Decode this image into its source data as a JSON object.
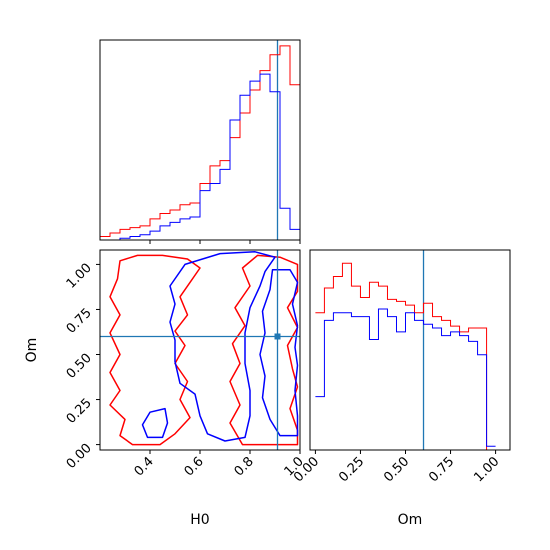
{
  "colors": {
    "red_series": "#ff0000",
    "blue_series": "#0000ff",
    "truth_line": "#1f77b4"
  },
  "chart_data": [
    {
      "type": "histogram",
      "panel": "H0 marginal",
      "xlim": [
        0.2,
        1.0
      ],
      "bin_edges": [
        0.2,
        0.24,
        0.28,
        0.32,
        0.36,
        0.4,
        0.44,
        0.48,
        0.52,
        0.56,
        0.6,
        0.64,
        0.68,
        0.72,
        0.76,
        0.8,
        0.84,
        0.88,
        0.92,
        0.96,
        1.0
      ],
      "series": [
        {
          "color": "red",
          "values": [
            2,
            4,
            6,
            7,
            8,
            12,
            15,
            17,
            20,
            21,
            32,
            42,
            45,
            58,
            72,
            85,
            96,
            105,
            110,
            88
          ]
        },
        {
          "color": "blue",
          "values": [
            0,
            0,
            1,
            2,
            3,
            5,
            8,
            10,
            12,
            13,
            28,
            32,
            40,
            68,
            82,
            90,
            94,
            84,
            18,
            6
          ]
        }
      ],
      "truth": 0.91
    },
    {
      "type": "contour",
      "panel": "H0 vs Om",
      "xlabel": "H0",
      "ylabel": "Om",
      "xlim": [
        0.2,
        1.0
      ],
      "ylim": [
        -0.03,
        1.08
      ],
      "xticks": [
        "0.4",
        "0.6",
        "0.8",
        "1.0"
      ],
      "yticks": [
        "0.00",
        "0.25",
        "0.50",
        "0.75",
        "1.00"
      ],
      "truth": {
        "H0": 0.91,
        "Om": 0.6
      },
      "series": [
        {
          "color": "red",
          "contours": [
            [
              [
                0.28,
                1.02
              ],
              [
                0.35,
                1.05
              ],
              [
                0.45,
                1.05
              ],
              [
                0.55,
                1.03
              ],
              [
                0.6,
                0.98
              ],
              [
                0.56,
                0.9
              ],
              [
                0.52,
                0.82
              ],
              [
                0.55,
                0.72
              ],
              [
                0.5,
                0.63
              ],
              [
                0.54,
                0.55
              ],
              [
                0.5,
                0.45
              ],
              [
                0.55,
                0.35
              ],
              [
                0.52,
                0.25
              ],
              [
                0.56,
                0.15
              ],
              [
                0.5,
                0.06
              ],
              [
                0.44,
                0.0
              ],
              [
                0.33,
                0.0
              ],
              [
                0.28,
                0.05
              ],
              [
                0.3,
                0.14
              ],
              [
                0.24,
                0.22
              ],
              [
                0.28,
                0.3
              ],
              [
                0.24,
                0.4
              ],
              [
                0.28,
                0.5
              ],
              [
                0.24,
                0.62
              ],
              [
                0.28,
                0.72
              ],
              [
                0.24,
                0.82
              ],
              [
                0.27,
                0.92
              ],
              [
                0.28,
                1.02
              ]
            ],
            [
              [
                0.83,
                1.05
              ],
              [
                0.92,
                1.04
              ],
              [
                0.99,
                1.0
              ],
              [
                0.99,
                0.85
              ],
              [
                0.95,
                0.76
              ],
              [
                0.99,
                0.65
              ],
              [
                0.95,
                0.55
              ],
              [
                0.97,
                0.42
              ],
              [
                0.99,
                0.32
              ],
              [
                0.96,
                0.2
              ],
              [
                0.99,
                0.08
              ],
              [
                0.99,
                0.0
              ],
              [
                0.77,
                0.0
              ],
              [
                0.72,
                0.12
              ],
              [
                0.76,
                0.22
              ],
              [
                0.72,
                0.35
              ],
              [
                0.76,
                0.45
              ],
              [
                0.73,
                0.56
              ],
              [
                0.78,
                0.66
              ],
              [
                0.74,
                0.76
              ],
              [
                0.8,
                0.88
              ],
              [
                0.77,
                0.98
              ],
              [
                0.83,
                1.05
              ]
            ]
          ]
        },
        {
          "color": "blue",
          "contours": [
            [
              [
                0.54,
                1.0
              ],
              [
                0.68,
                1.06
              ],
              [
                0.82,
                1.07
              ],
              [
                0.9,
                1.04
              ],
              [
                0.86,
                0.96
              ],
              [
                0.84,
                0.88
              ],
              [
                0.8,
                0.76
              ],
              [
                0.78,
                0.62
              ],
              [
                0.78,
                0.45
              ],
              [
                0.8,
                0.3
              ],
              [
                0.8,
                0.16
              ],
              [
                0.78,
                0.04
              ],
              [
                0.7,
                0.02
              ],
              [
                0.63,
                0.06
              ],
              [
                0.6,
                0.16
              ],
              [
                0.58,
                0.28
              ],
              [
                0.52,
                0.34
              ],
              [
                0.5,
                0.46
              ],
              [
                0.5,
                0.58
              ],
              [
                0.48,
                0.68
              ],
              [
                0.5,
                0.78
              ],
              [
                0.48,
                0.88
              ],
              [
                0.54,
                1.0
              ]
            ],
            [
              [
                0.89,
                0.97
              ],
              [
                0.96,
                0.97
              ],
              [
                0.99,
                0.9
              ],
              [
                0.97,
                0.78
              ],
              [
                0.99,
                0.66
              ],
              [
                0.98,
                0.54
              ],
              [
                0.99,
                0.44
              ],
              [
                0.98,
                0.3
              ],
              [
                0.99,
                0.16
              ],
              [
                0.99,
                0.05
              ],
              [
                0.92,
                0.05
              ],
              [
                0.88,
                0.14
              ],
              [
                0.85,
                0.26
              ],
              [
                0.86,
                0.38
              ],
              [
                0.84,
                0.5
              ],
              [
                0.86,
                0.62
              ],
              [
                0.85,
                0.74
              ],
              [
                0.88,
                0.86
              ],
              [
                0.89,
                0.97
              ]
            ],
            [
              [
                0.4,
                0.18
              ],
              [
                0.46,
                0.2
              ],
              [
                0.47,
                0.12
              ],
              [
                0.45,
                0.04
              ],
              [
                0.39,
                0.04
              ],
              [
                0.37,
                0.11
              ],
              [
                0.4,
                0.18
              ]
            ]
          ]
        }
      ]
    },
    {
      "type": "histogram",
      "panel": "Om marginal",
      "xlabel": "Om",
      "xlim": [
        -0.03,
        1.08
      ],
      "xticks": [
        "0.00",
        "0.25",
        "0.50",
        "0.75",
        "1.00"
      ],
      "bin_edges": [
        0.0,
        0.05,
        0.1,
        0.15,
        0.2,
        0.25,
        0.3,
        0.35,
        0.4,
        0.45,
        0.5,
        0.55,
        0.6,
        0.65,
        0.7,
        0.75,
        0.8,
        0.85,
        0.9,
        0.95,
        1.0
      ],
      "series": [
        {
          "color": "red",
          "values": [
            72,
            85,
            91,
            98,
            86,
            80,
            88,
            86,
            79,
            78,
            76,
            72,
            77,
            70,
            68,
            65,
            62,
            64,
            64,
            0
          ]
        },
        {
          "color": "blue",
          "values": [
            28,
            68,
            72,
            72,
            70,
            70,
            58,
            74,
            70,
            62,
            72,
            68,
            66,
            64,
            60,
            62,
            60,
            57,
            50,
            2
          ]
        }
      ],
      "truth": 0.6
    }
  ]
}
